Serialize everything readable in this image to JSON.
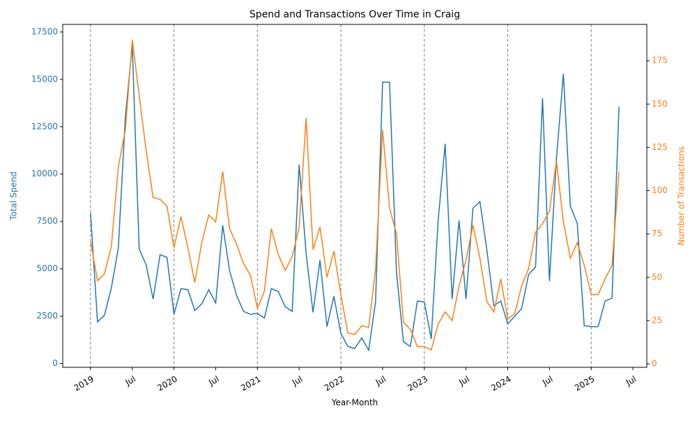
{
  "chart_data": {
    "type": "line",
    "title": "Spend and Transactions Over Time in Craig",
    "x_label": "Year-Month",
    "y_label": "Total Spend",
    "y2_label": "Number of Transactions",
    "x": [
      "2019-01",
      "2019-02",
      "2019-03",
      "2019-04",
      "2019-05",
      "2019-06",
      "2019-07",
      "2019-08",
      "2019-09",
      "2019-10",
      "2019-11",
      "2019-12",
      "2020-01",
      "2020-02",
      "2020-03",
      "2020-04",
      "2020-05",
      "2020-06",
      "2020-07",
      "2020-08",
      "2020-09",
      "2020-10",
      "2020-11",
      "2020-12",
      "2021-01",
      "2021-02",
      "2021-03",
      "2021-04",
      "2021-05",
      "2021-06",
      "2021-07",
      "2021-08",
      "2021-09",
      "2021-10",
      "2021-11",
      "2021-12",
      "2022-01",
      "2022-02",
      "2022-03",
      "2022-04",
      "2022-05",
      "2022-06",
      "2022-07",
      "2022-08",
      "2022-09",
      "2022-10",
      "2022-11",
      "2022-12",
      "2023-01",
      "2023-02",
      "2023-03",
      "2023-04",
      "2023-05",
      "2023-06",
      "2023-07",
      "2023-08",
      "2023-09",
      "2023-10",
      "2023-11",
      "2023-12",
      "2024-01",
      "2024-02",
      "2024-03",
      "2024-04",
      "2024-05",
      "2024-06",
      "2024-07",
      "2024-08",
      "2024-09",
      "2024-10",
      "2024-11",
      "2024-12",
      "2025-01",
      "2025-02",
      "2025-03",
      "2025-04",
      "2025-05"
    ],
    "series": [
      {
        "name": "Total Spend",
        "color": "#1f77b4",
        "axis": "y",
        "values": [
          7950,
          2200,
          2550,
          4000,
          6100,
          13000,
          16800,
          6050,
          5200,
          3400,
          5750,
          5600,
          2600,
          3950,
          3900,
          2800,
          3150,
          3900,
          3200,
          7300,
          4900,
          3600,
          2750,
          2600,
          2650,
          2400,
          3950,
          3800,
          3000,
          2750,
          10500,
          5800,
          2700,
          5450,
          1950,
          3550,
          1600,
          900,
          800,
          1350,
          700,
          3300,
          14850,
          14850,
          4800,
          1150,
          900,
          3300,
          3250,
          1300,
          7600,
          11600,
          3400,
          7550,
          3400,
          8200,
          8550,
          6000,
          3050,
          3300,
          2100,
          2500,
          2900,
          4700,
          5100,
          14000,
          4350,
          10800,
          15300,
          8300,
          7400,
          2000,
          1950,
          1950,
          3300,
          3450,
          13550
        ]
      },
      {
        "name": "Number of Transactions",
        "color": "#ff7f0e",
        "axis": "y2",
        "values": [
          71,
          48,
          52,
          68,
          114,
          135,
          187,
          155,
          123,
          96,
          95,
          91,
          67,
          85,
          67,
          47,
          70,
          86,
          82,
          111,
          78,
          69,
          58,
          51,
          32,
          42,
          78,
          63,
          54,
          62,
          79,
          142,
          66,
          79,
          50,
          65,
          40,
          18,
          17,
          22,
          21,
          55,
          135,
          90,
          75,
          24,
          20,
          10,
          10,
          8,
          23,
          30,
          25,
          45,
          60,
          80,
          61,
          36,
          30,
          49,
          26,
          29,
          45,
          55,
          76,
          81,
          88,
          117,
          82,
          61,
          70,
          57,
          40,
          40,
          49,
          57,
          111
        ]
      }
    ],
    "xlim": [
      "2018-09",
      "2025-09"
    ],
    "xticks": [
      {
        "value": "2019-01",
        "label": "2019"
      },
      {
        "value": "2019-07",
        "label": "Jul"
      },
      {
        "value": "2020-01",
        "label": "2020"
      },
      {
        "value": "2020-07",
        "label": "Jul"
      },
      {
        "value": "2021-01",
        "label": "2021"
      },
      {
        "value": "2021-07",
        "label": "Jul"
      },
      {
        "value": "2022-01",
        "label": "2022"
      },
      {
        "value": "2022-07",
        "label": "Jul"
      },
      {
        "value": "2023-01",
        "label": "2023"
      },
      {
        "value": "2023-07",
        "label": "Jul"
      },
      {
        "value": "2024-01",
        "label": "2024"
      },
      {
        "value": "2024-07",
        "label": "Jul"
      },
      {
        "value": "2025-01",
        "label": "2025"
      },
      {
        "value": "2025-07",
        "label": "Jul"
      }
    ],
    "vlines": [
      "2019-01",
      "2020-01",
      "2021-01",
      "2022-01",
      "2023-01",
      "2024-01",
      "2025-01"
    ],
    "ylim": [
      -200,
      17900
    ],
    "yticks": [
      0,
      2500,
      5000,
      7500,
      10000,
      12500,
      15000,
      17500
    ],
    "y2lim": [
      -2,
      196
    ],
    "y2ticks": [
      0,
      25,
      50,
      75,
      100,
      125,
      150,
      175
    ]
  }
}
